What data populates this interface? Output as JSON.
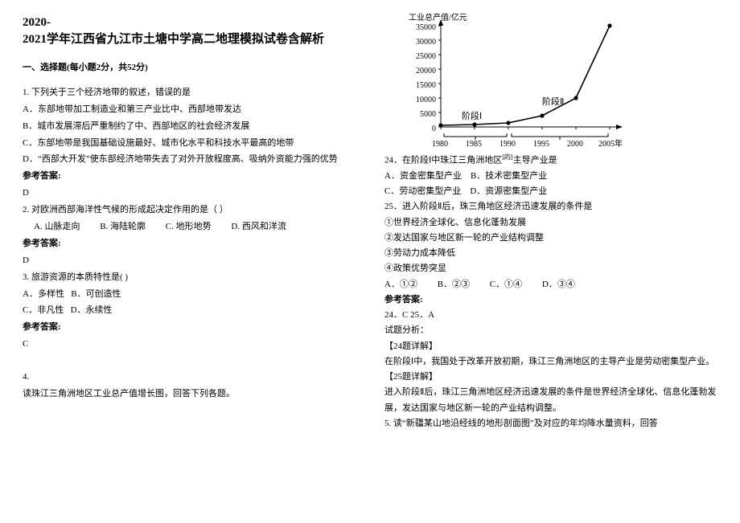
{
  "title1": "2020-",
  "title2": "2021学年江西省九江市土塘中学高二地理模拟试卷含解析",
  "section1": "一、选择题(每小题2分，共52分)",
  "q1": {
    "stem": "1. 下列关于三个经济地带的叙述，错误的是",
    "A": "A．东部地带加工制造业和第三产业比中、西部地带发达",
    "B": "B．城市发展滞后严重制约了中、西部地区的社会经济发展",
    "C": "C．东部地带是我国基础设施最好、城市化水平和科技水平最高的地带",
    "D": "D．“西部大开发”使东部经济地带失去了对外开放程度高、吸纳外资能力强的优势",
    "ans_label": "参考答案:",
    "ans": "D"
  },
  "q2": {
    "stem": "2. 对欧洲西部海洋性气候的形成起决定作用的是（       ）",
    "opts": {
      "A": "A. 山脉走向",
      "B": "B. 海陆轮廓",
      "C": "C. 地形地势",
      "D": "D. 西风和洋流"
    },
    "ans_label": "参考答案:",
    "ans": "D"
  },
  "q3": {
    "stem": "3. 旅游资源的本质特性是(       )",
    "opts": {
      "A": "A．多样性",
      "B": "B．可创造性",
      "C": "C．非凡性",
      "D": "D．永续性"
    },
    "ans_label": "参考答案:",
    "ans": "C"
  },
  "q4": {
    "num": "4.",
    "stem": "读珠江三角洲地区工业总产值增长图，回答下列各题。"
  },
  "chart": {
    "ylabel": "工业总产值/亿元",
    "xvals": [
      "1980",
      "1985",
      "1990",
      "1995",
      "2000",
      "2005年"
    ],
    "yvals": [
      "0",
      "5000",
      "10000",
      "15000",
      "20000",
      "25000",
      "30000",
      "35000"
    ],
    "phase1": "阶段Ⅰ",
    "phase2": "阶段Ⅱ",
    "series_xpx": [
      40,
      82,
      124,
      166,
      208,
      250
    ],
    "series_ypx": [
      138,
      137,
      135,
      126,
      104,
      14
    ],
    "axis_color": "#000000",
    "line_color": "#000000",
    "bg": "#ffffff"
  },
  "q24": {
    "stem_a": "24．在阶段Ⅰ中珠江三角洲地区",
    "stem_b": "主导产业是",
    "sup": "[的]",
    "A": "A．资金密集型产业",
    "B": "B．技术密集型产业",
    "C": "C．劳动密集型产业",
    "D": "D．资源密集型产业"
  },
  "q25": {
    "stem": "25．进入阶段Ⅱ后，珠三角地区经济迅速发展的条件是",
    "c1": "①世界经济全球化、信息化蓬勃发展",
    "c2": "②发达国家与地区新一轮的产业结构调整",
    "c3": "③劳动力成本降低",
    "c4": "④政策优势突显",
    "opts": {
      "A": "A．①②",
      "B": "B．②③",
      "C": "C．①④",
      "D": "D．③④"
    }
  },
  "ans45": {
    "label": "参考答案:",
    "ans": "24．C     25．A",
    "fx": "试题分析：",
    "h24": "【24题详解】",
    "t24": "在阶段Ⅰ中，我国处于改革开放初期，珠江三角洲地区的主导产业是劳动密集型产业。",
    "h25": "【25题详解】",
    "t25": "进入阶段Ⅱ后，珠江三角洲地区经济迅速发展的条件是世界经济全球化、信息化蓬勃发展，发达国家与地区新一轮的产业结构调整。"
  },
  "q5": {
    "stem": "5. 读“新疆某山地沿经线的地形剖面图”及对应的年均降水量资料，回答"
  }
}
